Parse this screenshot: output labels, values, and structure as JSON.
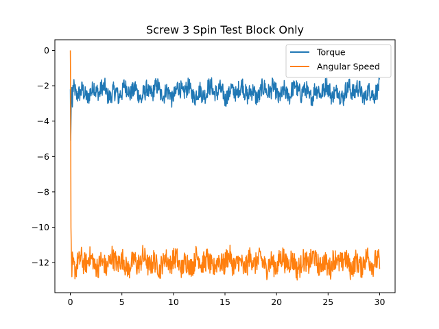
{
  "chart_data": {
    "type": "line",
    "title": "Screw 3 Spin Test Block Only",
    "xlabel": "",
    "ylabel": "",
    "xlim": [
      -1.5,
      31.5
    ],
    "ylim": [
      -13.7,
      0.6
    ],
    "xticks": [
      0,
      5,
      10,
      15,
      20,
      25,
      30
    ],
    "xtick_labels": [
      "0",
      "5",
      "10",
      "15",
      "20",
      "25",
      "30"
    ],
    "yticks": [
      0,
      -2,
      -4,
      -6,
      -8,
      -10,
      -12
    ],
    "ytick_labels": [
      "0",
      "−2",
      "−4",
      "−6",
      "−8",
      "−10",
      "−12"
    ],
    "grid": false,
    "legend_position": "top-right",
    "series": [
      {
        "name": "Torque",
        "color": "#1f77b4",
        "x_start": 0,
        "x_end": 30,
        "steady_mean": -2.35,
        "steady_band": [
          -3.3,
          -1.55
        ],
        "initial_dip": -5.1
      },
      {
        "name": "Angular Speed",
        "color": "#ff7f0e",
        "x_start": 0,
        "x_end": 30,
        "initial_value": 0,
        "steady_mean": -12.0,
        "steady_band": [
          -13.1,
          -10.9
        ]
      }
    ]
  }
}
